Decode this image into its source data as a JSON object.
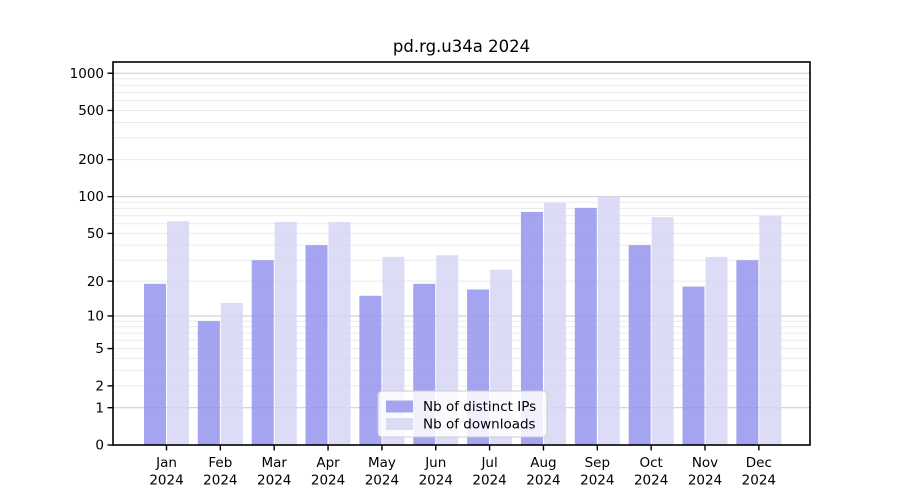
{
  "chart_data": {
    "type": "bar",
    "title": "pd.rg.u34a 2024",
    "categories": [
      "Jan 2024",
      "Feb 2024",
      "Mar 2024",
      "Apr 2024",
      "May 2024",
      "Jun 2024",
      "Jul 2024",
      "Aug 2024",
      "Sep 2024",
      "Oct 2024",
      "Nov 2024",
      "Dec 2024"
    ],
    "series": [
      {
        "name": "Nb of distinct IPs",
        "color": "#9494ee",
        "values": [
          19,
          9,
          30,
          40,
          15,
          19,
          17,
          75,
          81,
          40,
          18,
          30
        ]
      },
      {
        "name": "Nb of downloads",
        "color": "#d6d6f6",
        "values": [
          63,
          13,
          62,
          62,
          32,
          33,
          25,
          89,
          100,
          68,
          32,
          70
        ]
      }
    ],
    "xlabel": "",
    "ylabel": "",
    "yscale": "log1p",
    "yticks": [
      1000,
      500,
      200,
      100,
      50,
      20,
      10,
      5,
      2,
      1,
      0
    ],
    "ylim": [
      0,
      1232
    ],
    "grid": "on",
    "grid_major_values": [
      1,
      10,
      100,
      1000
    ],
    "legend_position": "lower center"
  },
  "colors": {
    "axis": "#000000",
    "text": "#000000",
    "grid_major": "#c9c9c9",
    "grid_minor": "#ebebeb",
    "legend_border": "#cccccc",
    "legend_background": "#ffffff",
    "plot_background": "#ffffff"
  }
}
